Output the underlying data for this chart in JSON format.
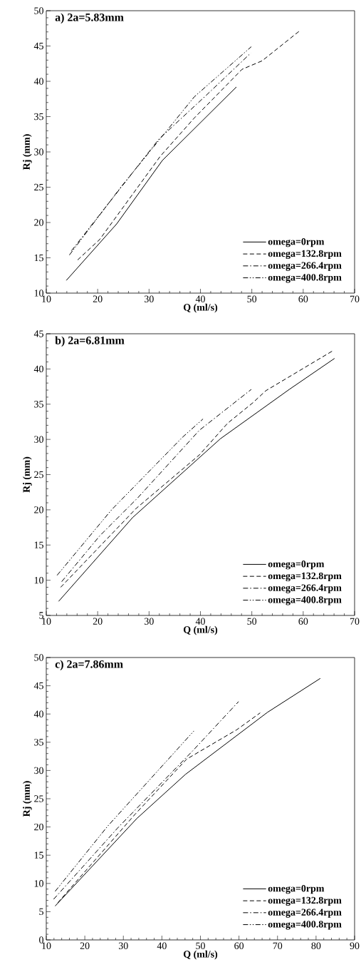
{
  "chart_data": [
    {
      "type": "line",
      "title": "a) 2a=5.83mm",
      "xlabel": "Q (ml/s)",
      "ylabel": "Rj (mm)",
      "xlim": [
        10,
        70
      ],
      "ylim": [
        10,
        50
      ],
      "xticks": [
        10,
        20,
        30,
        40,
        50,
        60,
        70
      ],
      "yticks": [
        10,
        15,
        20,
        25,
        30,
        35,
        40,
        45,
        50
      ],
      "grid": false,
      "legend": "bottom right",
      "marker": "none",
      "series": [
        {
          "name": "omega=0rpm",
          "color": "#000000",
          "line_style": "solid",
          "x": [
            13.9,
            23.7,
            32.6,
            47.0
          ],
          "values": [
            11.8,
            19.8,
            28.8,
            39.2
          ]
        },
        {
          "name": "omega=132.8rpm",
          "color": "#000000",
          "line_style": "dashed",
          "x": [
            16.1,
            20.4,
            32.2,
            38.8,
            48.1,
            52.0,
            59.4
          ],
          "values": [
            14.7,
            17.6,
            29.4,
            34.8,
            41.7,
            42.9,
            47.2
          ]
        },
        {
          "name": "omega=266.4rpm",
          "color": "#000000",
          "line_style": "dashdot",
          "x": [
            14.9,
            31.9,
            41.1,
            49.8
          ],
          "values": [
            16.0,
            31.8,
            38.0,
            44.0
          ]
        },
        {
          "name": "omega=400.8rpm",
          "color": "#000000",
          "line_style": "dashdotdot",
          "x": [
            14.5,
            24.5,
            38.8,
            49.9
          ],
          "values": [
            15.4,
            25.0,
            37.8,
            44.9
          ]
        }
      ]
    },
    {
      "type": "line",
      "title": "b) 2a=6.81mm",
      "xlabel": "Q (ml/s)",
      "ylabel": "Rj (mm)",
      "xlim": [
        10,
        70
      ],
      "ylim": [
        5,
        45
      ],
      "xticks": [
        10,
        20,
        30,
        40,
        50,
        60,
        70
      ],
      "yticks": [
        5,
        10,
        15,
        20,
        25,
        30,
        35,
        40,
        45
      ],
      "grid": false,
      "legend": "bottom right",
      "marker": "none",
      "series": [
        {
          "name": "omega=0rpm",
          "color": "#000000",
          "line_style": "solid",
          "x": [
            12.4,
            26.8,
            43.9,
            57.3,
            66.1
          ],
          "values": [
            7.0,
            18.9,
            30.1,
            37.1,
            41.5
          ]
        },
        {
          "name": "omega=132.8rpm",
          "color": "#000000",
          "line_style": "dashed",
          "x": [
            12.8,
            27.5,
            39.8,
            45.3,
            50.2,
            52.7,
            65.8
          ],
          "values": [
            9.0,
            20.2,
            27.8,
            32.3,
            35.2,
            36.9,
            42.6
          ]
        },
        {
          "name": "omega=266.4rpm",
          "color": "#000000",
          "line_style": "dashdot",
          "x": [
            13.0,
            20.4,
            27.8,
            39.8,
            49.9
          ],
          "values": [
            9.8,
            16.3,
            21.7,
            31.3,
            37.1
          ]
        },
        {
          "name": "omega=400.8rpm",
          "color": "#000000",
          "line_style": "dashdotdot",
          "x": [
            12.1,
            22.7,
            36.5,
            40.5
          ],
          "values": [
            10.7,
            20.0,
            30.3,
            32.9
          ]
        }
      ]
    },
    {
      "type": "line",
      "title": "c) 2a=7.86mm",
      "xlabel": "Q (ml/s)",
      "ylabel": "Rj (mm)",
      "xlim": [
        10,
        90
      ],
      "ylim": [
        0,
        50
      ],
      "xticks": [
        10,
        20,
        30,
        40,
        50,
        60,
        70,
        80,
        90
      ],
      "yticks": [
        0,
        5,
        10,
        15,
        20,
        25,
        30,
        35,
        40,
        45,
        50
      ],
      "grid": false,
      "legend": "bottom right",
      "marker": "none",
      "series": [
        {
          "name": "omega=0rpm",
          "color": "#000000",
          "line_style": "solid",
          "x": [
            12.3,
            33.5,
            46.1,
            67.4,
            81.1
          ],
          "values": [
            6.0,
            21.5,
            29.3,
            40.3,
            46.3
          ]
        },
        {
          "name": "omega=132.8rpm",
          "color": "#000000",
          "line_style": "dashed",
          "x": [
            13.0,
            33.1,
            46.4,
            59.4,
            65.5
          ],
          "values": [
            6.6,
            22.3,
            32.0,
            37.2,
            40.2
          ]
        },
        {
          "name": "omega=266.4rpm",
          "color": "#000000",
          "line_style": "dashdot",
          "x": [
            11.9,
            28.5,
            48.3,
            59.9
          ],
          "values": [
            7.2,
            19.8,
            33.7,
            42.2
          ]
        },
        {
          "name": "omega=400.8rpm",
          "color": "#000000",
          "line_style": "dashdotdot",
          "x": [
            12.3,
            26.0,
            48.3
          ],
          "values": [
            8.6,
            20.2,
            37.0
          ]
        }
      ]
    }
  ]
}
